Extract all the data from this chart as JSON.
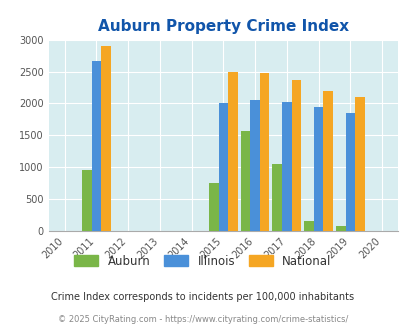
{
  "title": "Auburn Property Crime Index",
  "auburn": {
    "2011": 950,
    "2015": 750,
    "2016": 1570,
    "2017": 1050,
    "2018": 160,
    "2019": 75
  },
  "illinois": {
    "2011": 2670,
    "2015": 2000,
    "2016": 2050,
    "2017": 2020,
    "2018": 1940,
    "2019": 1850
  },
  "national": {
    "2011": 2900,
    "2015": 2500,
    "2016": 2470,
    "2017": 2360,
    "2018": 2190,
    "2019": 2100
  },
  "auburn_color": "#7ab648",
  "illinois_color": "#4a90d9",
  "national_color": "#f5a623",
  "bg_color": "#d8edf0",
  "ylim": [
    0,
    3000
  ],
  "yticks": [
    0,
    500,
    1000,
    1500,
    2000,
    2500,
    3000
  ],
  "tick_color": "#555555",
  "title_color": "#1155aa",
  "title_fontsize": 11,
  "legend_label_auburn": "Auburn",
  "legend_label_illinois": "Illinois",
  "legend_label_national": "National",
  "footnote1": "Crime Index corresponds to incidents per 100,000 inhabitants",
  "footnote2": "© 2025 CityRating.com - https://www.cityrating.com/crime-statistics/",
  "bar_width": 0.3,
  "tick_fontsize": 7,
  "footnote1_color": "#333333",
  "footnote2_color": "#888888"
}
